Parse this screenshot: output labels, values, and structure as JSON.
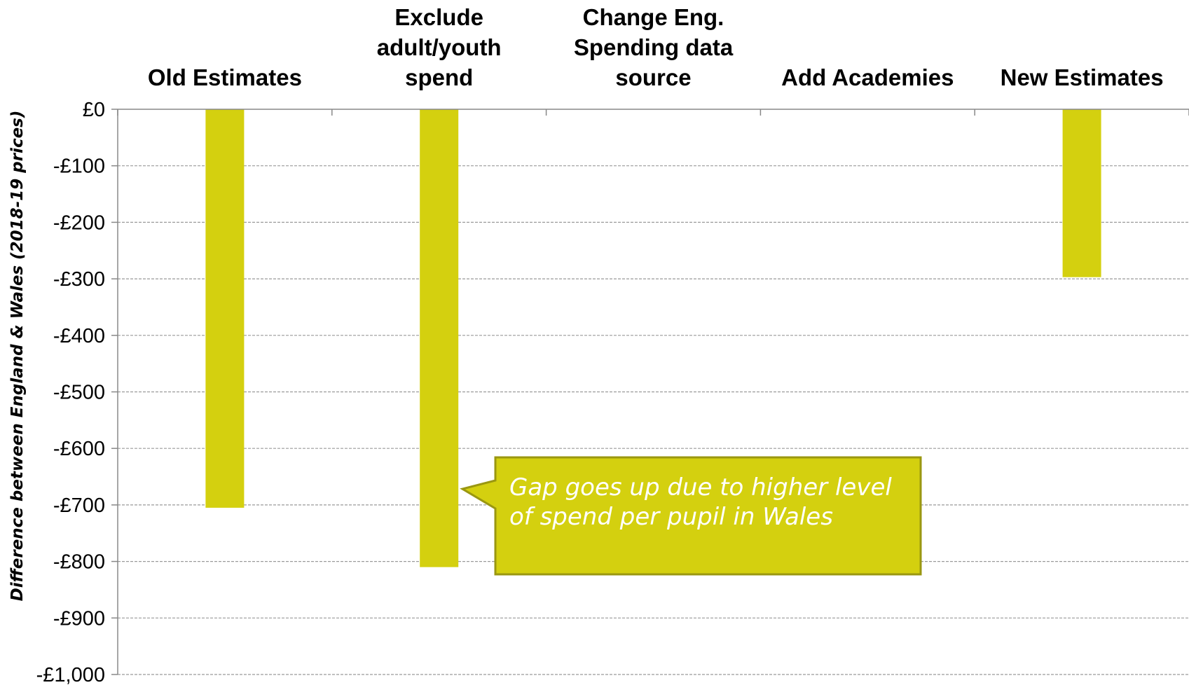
{
  "chart_data": {
    "type": "bar",
    "categories": [
      [
        "Old Estimates"
      ],
      [
        "Exclude",
        "adult/youth",
        "spend"
      ],
      [
        "Change Eng.",
        "Spending data",
        "source"
      ],
      [
        "Add Academies"
      ],
      [
        "New Estimates"
      ]
    ],
    "values": [
      -705,
      -810,
      null,
      null,
      -297
    ],
    "ylabel": "Difference between England & Wales (2018-19 prices)",
    "ylim": [
      -1000,
      0
    ],
    "yticks": [
      0,
      -100,
      -200,
      -300,
      -400,
      -500,
      -600,
      -700,
      -800,
      -900,
      -1000
    ],
    "ytick_labels": [
      "£0",
      "-£100",
      "-£200",
      "-£300",
      "-£400",
      "-£500",
      "-£600",
      "-£700",
      "-£800",
      "-£900",
      "-£1,000"
    ],
    "grid": true,
    "bar_color": "#d4d00f",
    "annotation": {
      "text_lines": [
        "Gap goes up due to higher level",
        "of spend per pupil in Wales"
      ],
      "points_to_category": 1,
      "fill": "#d4d00f",
      "border": "#9a9710"
    }
  }
}
